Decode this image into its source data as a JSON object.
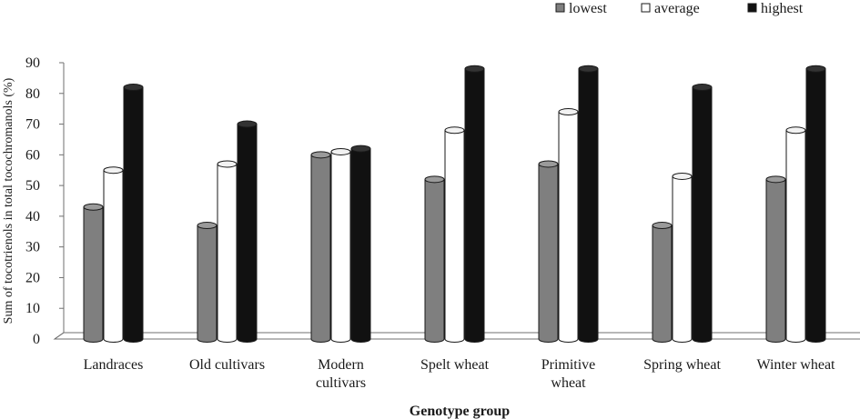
{
  "chart_data": {
    "type": "bar",
    "xlabel": "Genotype group",
    "ylabel": "Sum of tocotrienols in total tocochromanols (%)",
    "ylim": [
      0,
      90
    ],
    "yticks": [
      0,
      10,
      20,
      30,
      40,
      50,
      60,
      70,
      80,
      90
    ],
    "grid": false,
    "legend_position": "top-right",
    "categories": [
      [
        "Landraces"
      ],
      [
        "Old cultivars"
      ],
      [
        "Modern",
        "cultivars"
      ],
      [
        "Spelt wheat"
      ],
      [
        "Primitive",
        "wheat"
      ],
      [
        "Spring wheat"
      ],
      [
        "Winter wheat"
      ]
    ],
    "series": [
      {
        "name": "lowest",
        "color": "#7f7f7f",
        "values": [
          43,
          37,
          60,
          52,
          57,
          37,
          52
        ]
      },
      {
        "name": "average",
        "color": "#ffffff",
        "values": [
          55,
          57,
          61,
          68,
          74,
          53,
          68
        ]
      },
      {
        "name": "highest",
        "color": "#111111",
        "values": [
          82,
          70,
          62,
          88,
          88,
          82,
          88
        ]
      }
    ]
  }
}
